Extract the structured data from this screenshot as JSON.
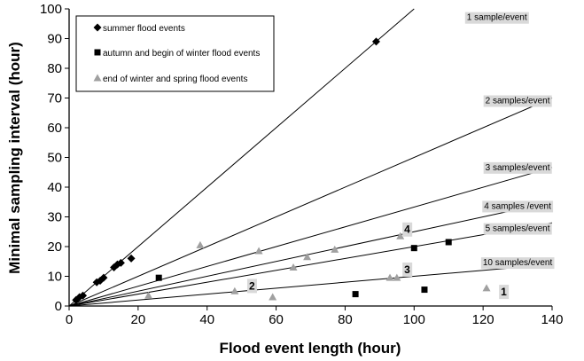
{
  "chart_data": {
    "type": "scatter",
    "xlabel": "Flood event length (hour)",
    "ylabel": "Minimal sampling interval (hour)",
    "xlim": [
      0,
      140
    ],
    "ylim": [
      0,
      100
    ],
    "xticks": [
      0,
      20,
      40,
      60,
      80,
      100,
      120,
      140
    ],
    "yticks": [
      0,
      10,
      20,
      30,
      40,
      50,
      60,
      70,
      80,
      90,
      100
    ],
    "grid": false,
    "legend_position": "top-left",
    "series": [
      {
        "name": "summer flood events",
        "marker": "diamond",
        "color": "#000000",
        "points": [
          [
            2,
            2
          ],
          [
            3,
            3
          ],
          [
            4,
            3.5
          ],
          [
            8,
            8
          ],
          [
            9,
            8.5
          ],
          [
            10,
            9.5
          ],
          [
            13,
            13
          ],
          [
            14,
            14
          ],
          [
            15,
            14.5
          ],
          [
            18,
            16
          ],
          [
            89,
            89
          ]
        ]
      },
      {
        "name": "autumn and begin of winter flood events",
        "marker": "square",
        "color": "#000000",
        "points": [
          [
            26,
            9.5
          ],
          [
            83,
            4
          ],
          [
            100,
            19.5
          ],
          [
            103,
            5.5
          ],
          [
            110,
            21.5
          ]
        ]
      },
      {
        "name": "end of winter and spring flood events",
        "marker": "triangle",
        "color": "#a0a0a0",
        "points": [
          [
            23,
            3.5
          ],
          [
            38,
            20.5
          ],
          [
            48,
            5
          ],
          [
            55,
            18.5
          ],
          [
            59,
            3
          ],
          [
            65,
            13
          ],
          [
            69,
            16.5
          ],
          [
            77,
            19
          ],
          [
            93,
            9.5
          ],
          [
            95,
            9.5
          ],
          [
            96,
            23.5
          ],
          [
            121,
            6
          ]
        ]
      }
    ],
    "reference_lines": [
      {
        "label": "1 sample/event",
        "slope": 1,
        "label_at": [
          124,
          97
        ]
      },
      {
        "label": "2 samples/event",
        "slope": 0.5,
        "label_at": [
          130,
          69
        ]
      },
      {
        "label": "3 samples/event",
        "slope": 0.333,
        "label_at": [
          130,
          46.5
        ]
      },
      {
        "label": "4 samples /event",
        "slope": 0.25,
        "label_at": [
          130,
          33.5
        ]
      },
      {
        "label": "5 samples/event",
        "slope": 0.2,
        "label_at": [
          130,
          26
        ]
      },
      {
        "label": "10 samples/event",
        "slope": 0.1,
        "label_at": [
          130,
          14.5
        ]
      }
    ],
    "annotations": [
      {
        "text": "4",
        "at": [
          98,
          25.5
        ]
      },
      {
        "text": "3",
        "at": [
          98,
          12
        ]
      },
      {
        "text": "2",
        "at": [
          53,
          6.5
        ]
      },
      {
        "text": "1",
        "at": [
          126,
          4.5
        ]
      }
    ]
  }
}
